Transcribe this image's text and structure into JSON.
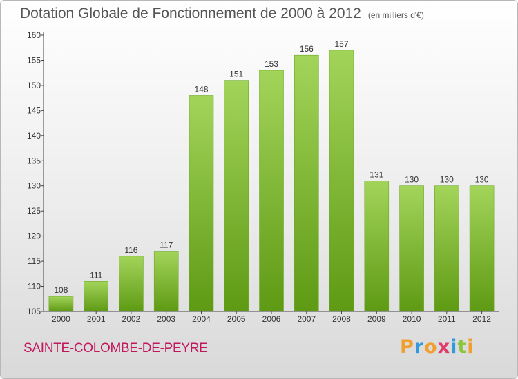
{
  "header": {
    "title": "Dotation Globale de Fonctionnement de 2000 à 2012",
    "subtitle": "(en milliers d'€)"
  },
  "footer": {
    "commune": "SAINTE-COLOMBE-DE-PEYRE",
    "logo_text": "Proxiti",
    "logo_letters": [
      {
        "ch": "P",
        "color": "#f0a030"
      },
      {
        "ch": "r",
        "color": "#3399dd"
      },
      {
        "ch": "o",
        "color": "#f0a030"
      },
      {
        "ch": "x",
        "color": "#e03b6a"
      },
      {
        "ch": "i",
        "color": "#3399dd"
      },
      {
        "ch": "t",
        "color": "#8cc63f"
      },
      {
        "ch": "i",
        "color": "#f0a030"
      }
    ]
  },
  "colors": {
    "bar_top": "#a3d45a",
    "bar_bottom": "#5e9a14",
    "axis": "#444444",
    "text": "#333333",
    "commune": "#c2185b"
  },
  "chart_data": {
    "type": "bar",
    "categories": [
      "2000",
      "2001",
      "2002",
      "2003",
      "2004",
      "2005",
      "2006",
      "2007",
      "2008",
      "2009",
      "2010",
      "2011",
      "2012"
    ],
    "values": [
      108,
      111,
      116,
      117,
      148,
      151,
      153,
      156,
      157,
      131,
      130,
      130,
      130
    ],
    "title": "Dotation Globale de Fonctionnement de 2000 à 2012",
    "subtitle": "(en milliers d'€)",
    "xlabel": "",
    "ylabel": "",
    "ylim": [
      105,
      160
    ],
    "yticks": [
      105,
      110,
      115,
      120,
      125,
      130,
      135,
      140,
      145,
      150,
      155,
      160
    ],
    "grid": false,
    "data_labels": true
  }
}
